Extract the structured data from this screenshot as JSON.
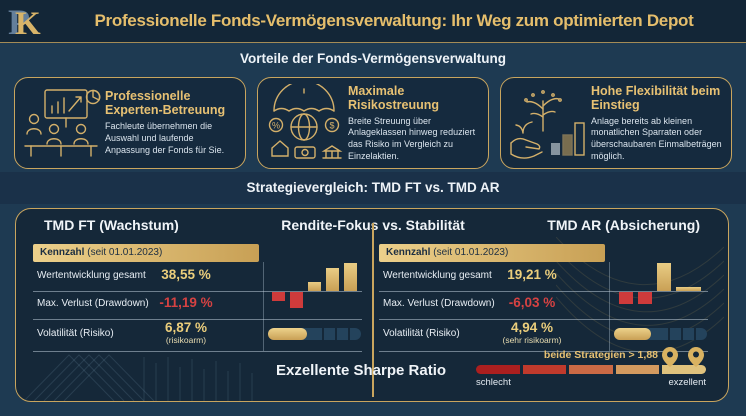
{
  "header": {
    "logo": {
      "letter_1": "P",
      "letter_2": "K"
    },
    "title": "Professionelle Fonds-Vermögensverwaltung: Ihr Weg zum optimierten Depot"
  },
  "benefits": {
    "section_title": "Vorteile der Fonds-Vermögensverwaltung",
    "cards": [
      {
        "icon": "experts-presentation-icon",
        "title": "Professionelle Experten-Betreuung",
        "description": "Fachleute übernehmen die Auswahl und laufende Anpassung der Fonds für Sie."
      },
      {
        "icon": "umbrella-globe-diversification-icon",
        "title": "Maximale Risikostreuung",
        "description": "Breite Streuung über Anlageklassen hinweg reduziert das Risiko im Vergleich zu Einzelaktien."
      },
      {
        "icon": "hand-tree-growth-icon",
        "title": "Hohe Flexibilität beim Einstieg",
        "description": "Anlage bereits ab kleinen monatlichen Sparraten oder überschaubaren Einmalbeträgen möglich."
      }
    ]
  },
  "comparison": {
    "section_title": "Strategievergleich: TMD FT vs. TMD AR",
    "center_title": "Rendite-Fokus vs. Stabilität",
    "panels": [
      {
        "title": "TMD FT (Wachstum)",
        "table": {
          "header_label": "Kennzahl",
          "header_note": "(seit 01.01.2023)",
          "rows": [
            {
              "label": "Wertentwicklung gesamt",
              "value": "38,55 %"
            },
            {
              "label": "Max. Verlust (Drawdown)",
              "value": "-11,19 %"
            },
            {
              "label": "Volatilität (Risiko)",
              "value": "6,87 %",
              "note": "(risikoarm)"
            }
          ]
        },
        "volatility_gauge_pct": 42
      },
      {
        "title": "TMD AR (Absicherung)",
        "table": {
          "header_label": "Kennzahl",
          "header_note": "(seit 01.01.2023)",
          "rows": [
            {
              "label": "Wertentwicklung gesamt",
              "value": "19,21 %"
            },
            {
              "label": "Max. Verlust (Drawdown)",
              "value": "-6,03 %"
            },
            {
              "label": "Volatilität (Risiko)",
              "value": "4,94 %",
              "note": "(sehr risikoarm)"
            }
          ]
        },
        "volatility_gauge_pct": 40
      }
    ],
    "sharpe": {
      "title": "Exzellente Sharpe Ratio",
      "annotation": "beide Strategien > 1,88",
      "scale_left": "schlecht",
      "scale_right": "exzellent",
      "segment_colors": [
        "#ab1f1f",
        "#c03a2c",
        "#cb6a45",
        "#d39a5f",
        "#dfc27d"
      ]
    }
  },
  "colors": {
    "background": "#1e3a52",
    "header_background": "#132637",
    "panel_background": "#152839",
    "gold_accent": "#c9a55e",
    "gold_text": "#e7c173",
    "negative_red": "#cf3b3b",
    "white_text": "#eef3f8"
  },
  "chart_data": [
    {
      "type": "bar",
      "name": "tmd-ft-performance-mini-chart",
      "description": "Decorative mini chart: gains above baseline (gold), drawdown below (red)",
      "values": [
        -9,
        -16,
        9,
        23,
        28
      ],
      "colors": [
        "red",
        "red",
        "gold",
        "gold",
        "gold"
      ],
      "bar_relative_widths": [
        1,
        1,
        1,
        1,
        1
      ]
    },
    {
      "type": "bar",
      "name": "tmd-ar-performance-mini-chart",
      "description": "Decorative mini chart: one strong gold gain, small red drawdowns, flat stable gold bar",
      "values": [
        -12,
        -12,
        28,
        4
      ],
      "colors": [
        "red",
        "red",
        "gold",
        "gold"
      ],
      "bar_relative_widths": [
        1,
        1,
        1,
        1.8
      ]
    }
  ]
}
